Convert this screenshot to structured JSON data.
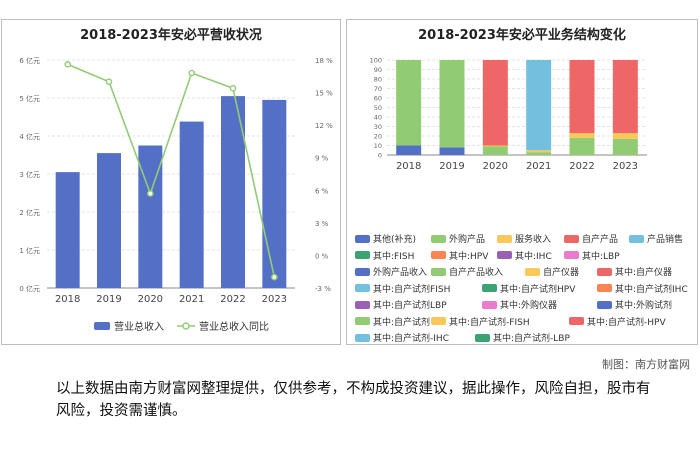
{
  "left_chart": {
    "title": "2018-2023年安必平营收状况",
    "legend": {
      "bar_label": "营业总收入",
      "line_label": "营业总收入同比"
    }
  },
  "right_chart": {
    "title": "2018-2023年安必平业务结构变化"
  },
  "source_note": "制图：南方财富网",
  "disclaimer": "以上数据由南方财富网整理提供，仅供参考，不构成投资建议，据此操作，风险自担，股市有风险，投资需谨慎。",
  "chart_data": [
    {
      "type": "bar",
      "title": "2018-2023年安必平营收状况",
      "categories": [
        "2018",
        "2019",
        "2020",
        "2021",
        "2022",
        "2023"
      ],
      "y_ticks": [
        "0 亿元",
        "1 亿元",
        "2 亿元",
        "3 亿元",
        "4 亿元",
        "5 亿元",
        "6 亿元"
      ],
      "y2_ticks": [
        "-3 %",
        "0 %",
        "3 %",
        "6 %",
        "9 %",
        "12 %",
        "15 %",
        "18 %"
      ],
      "ylim": [
        0,
        6
      ],
      "y2lim": [
        -3,
        18
      ],
      "series": [
        {
          "name": "营业总收入",
          "kind": "bar",
          "axis": "left",
          "color": "#5470c6",
          "values": [
            3.05,
            3.55,
            3.75,
            4.38,
            5.05,
            4.95
          ]
        },
        {
          "name": "营业总收入同比",
          "kind": "line",
          "axis": "right",
          "color": "#91cc75",
          "values": [
            17.6,
            16.0,
            5.7,
            16.8,
            15.4,
            -2.0
          ]
        }
      ],
      "legend_position": "bottom",
      "grid": true
    },
    {
      "type": "bar",
      "stacked": true,
      "title": "2018-2023年安必平业务结构变化",
      "categories": [
        "2018",
        "2019",
        "2020",
        "2021",
        "2022",
        "2023"
      ],
      "y_ticks": [
        "0",
        "10",
        "20",
        "30",
        "40",
        "50",
        "60",
        "70",
        "80",
        "90",
        "100"
      ],
      "ylim": [
        0,
        100
      ],
      "series": [
        {
          "name": "其他(补充)",
          "color": "#5470c6",
          "values": [
            10,
            8,
            0,
            0,
            0,
            0
          ]
        },
        {
          "name": "外购产品",
          "color": "#91cc75",
          "values": [
            90,
            92,
            9,
            3,
            18,
            17
          ]
        },
        {
          "name": "服务收入",
          "color": "#fac858",
          "values": [
            0,
            0,
            1,
            2,
            5,
            6
          ]
        },
        {
          "name": "自产产品",
          "color": "#ee6666",
          "values": [
            0,
            0,
            90,
            0,
            77,
            77
          ]
        },
        {
          "name": "产品销售",
          "color": "#73c0de",
          "values": [
            0,
            0,
            0,
            95,
            0,
            0
          ]
        },
        {
          "name": "其中:FISH",
          "color": "#3ba272",
          "values": [
            0,
            0,
            0,
            0,
            0,
            0
          ]
        },
        {
          "name": "其中:HPV",
          "color": "#fc8452",
          "values": [
            0,
            0,
            0,
            0,
            0,
            0
          ]
        },
        {
          "name": "其中:IHC",
          "color": "#9a60b4",
          "values": [
            0,
            0,
            0,
            0,
            0,
            0
          ]
        },
        {
          "name": "其中:LBP",
          "color": "#ea7ccc",
          "values": [
            0,
            0,
            0,
            0,
            0,
            0
          ]
        },
        {
          "name": "外购产品收入",
          "color": "#5470c6",
          "values": [
            0,
            0,
            0,
            0,
            0,
            0
          ]
        },
        {
          "name": "自产产品收入",
          "color": "#91cc75",
          "values": [
            0,
            0,
            0,
            0,
            0,
            0
          ]
        },
        {
          "name": "自产仪器",
          "color": "#fac858",
          "values": [
            0,
            0,
            0,
            0,
            0,
            0
          ]
        },
        {
          "name": "其中:自产仪器",
          "color": "#ee6666",
          "values": [
            0,
            0,
            0,
            0,
            0,
            0
          ]
        },
        {
          "name": "其中:自产试剂FISH",
          "color": "#73c0de",
          "values": [
            0,
            0,
            0,
            0,
            0,
            0
          ]
        },
        {
          "name": "其中:自产试剂HPV",
          "color": "#3ba272",
          "values": [
            0,
            0,
            0,
            0,
            0,
            0
          ]
        },
        {
          "name": "其中:自产试剂IHC",
          "color": "#fc8452",
          "values": [
            0,
            0,
            0,
            0,
            0,
            0
          ]
        },
        {
          "name": "其中:自产试剂LBP",
          "color": "#9a60b4",
          "values": [
            0,
            0,
            0,
            0,
            0,
            0
          ]
        },
        {
          "name": "其中:外购仪器",
          "color": "#ea7ccc",
          "values": [
            0,
            0,
            0,
            0,
            0,
            0
          ]
        },
        {
          "name": "其中:外购试剂",
          "color": "#5470c6",
          "values": [
            0,
            0,
            0,
            0,
            0,
            0
          ]
        },
        {
          "name": "其中:自产试剂",
          "color": "#91cc75",
          "values": [
            0,
            0,
            0,
            0,
            0,
            0
          ]
        },
        {
          "name": "其中:自产试剂-FISH",
          "color": "#fac858",
          "values": [
            0,
            0,
            0,
            0,
            0,
            0
          ]
        },
        {
          "name": "其中:自产试剂-HPV",
          "color": "#ee6666",
          "values": [
            0,
            0,
            0,
            0,
            0,
            0
          ]
        },
        {
          "name": "其中:自产试剂-IHC",
          "color": "#73c0de",
          "values": [
            0,
            0,
            0,
            0,
            0,
            0
          ]
        },
        {
          "name": "其中:自产试剂-LBP",
          "color": "#3ba272",
          "values": [
            0,
            0,
            0,
            0,
            0,
            0
          ]
        }
      ],
      "legend_position": "bottom",
      "grid": true
    }
  ]
}
